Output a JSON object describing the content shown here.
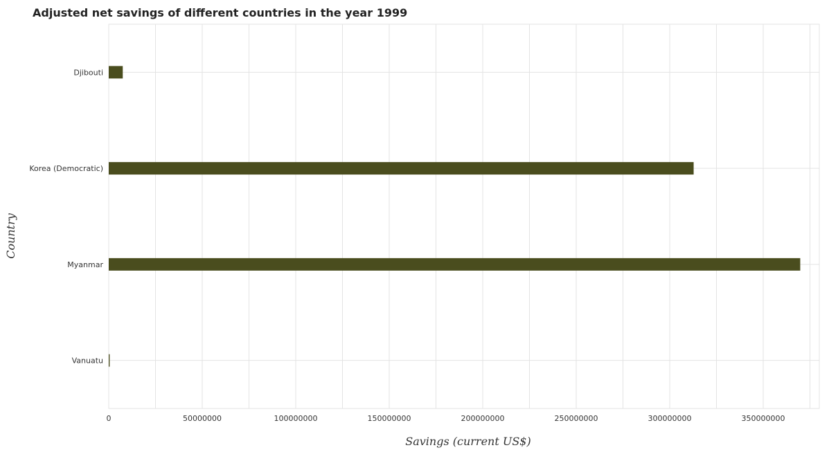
{
  "chart_data": {
    "type": "bar",
    "orientation": "horizontal",
    "title": "Adjusted net savings of different countries in the year 1999",
    "xlabel": "Savings (current US$)",
    "ylabel": "Country",
    "categories": [
      "Djibouti",
      "Korea (Democratic)",
      "Myanmar",
      "Vanuatu"
    ],
    "values": [
      7500000,
      312800000,
      369800000,
      500000
    ],
    "xlim": [
      0,
      380000000
    ],
    "xticks": [
      0,
      50000000,
      100000000,
      150000000,
      200000000,
      250000000,
      300000000,
      350000000
    ],
    "xtick_labels": [
      "0",
      "50000000",
      "100000000",
      "150000000",
      "200000000",
      "250000000",
      "300000000",
      "350000000"
    ],
    "bar_color": "#4a4d1e",
    "grid": true
  }
}
